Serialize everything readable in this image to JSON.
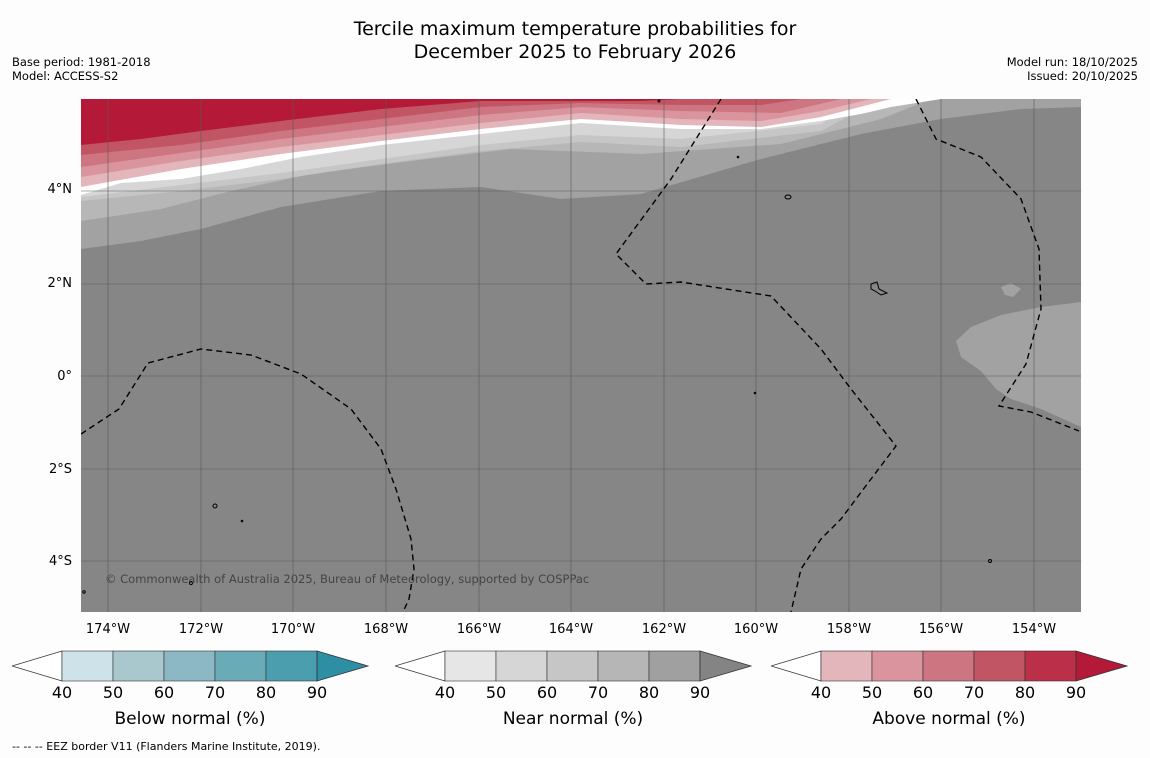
{
  "title_line1": "Tercile maximum temperature probabilities for",
  "title_line2": "December 2025 to February 2026",
  "base_period": "Base period: 1981-2018",
  "model": "Model: ACCESS-S2",
  "model_run": "Model run: 18/10/2025",
  "issued": "Issued: 20/10/2025",
  "lat_labels": [
    "4°N",
    "2°N",
    "0°",
    "2°S",
    "4°S"
  ],
  "lon_labels": [
    "174°W",
    "172°W",
    "170°W",
    "168°W",
    "166°W",
    "164°W",
    "162°W",
    "160°W",
    "158°W",
    "156°W",
    "154°W"
  ],
  "copyright": "© Commonwealth of Australia 2025, Bureau of Meteorology, supported by COSPPac",
  "colorbars": [
    {
      "label": "Below normal (%)",
      "ticks": [
        "40",
        "50",
        "60",
        "70",
        "80",
        "90"
      ],
      "colors": [
        "#ffffff",
        "#cde3e9",
        "#a9c8ce",
        "#8bb8c4",
        "#6aabb8",
        "#4a9eae",
        "#2e8ea3"
      ]
    },
    {
      "label": "Near normal (%)",
      "ticks": [
        "40",
        "50",
        "60",
        "70",
        "80",
        "90"
      ],
      "colors": [
        "#ffffff",
        "#e6e6e6",
        "#d6d6d6",
        "#c6c6c6",
        "#b6b6b6",
        "#a0a0a0",
        "#848484"
      ]
    },
    {
      "label": "Above normal (%)",
      "ticks": [
        "40",
        "50",
        "60",
        "70",
        "80",
        "90"
      ],
      "colors": [
        "#ffffff",
        "#e3b6bc",
        "#d9949e",
        "#cd7580",
        "#c25563",
        "#bb3048",
        "#b41a38"
      ]
    }
  ],
  "footnote": "--  --  -- EEZ border V11 (Flanders Marine Institute, 2019)."
}
